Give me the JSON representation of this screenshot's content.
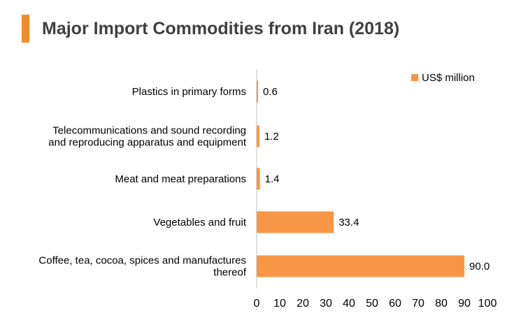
{
  "title": "Major Import Commodities from Iran (2018)",
  "colors": {
    "accent": "#f28c28",
    "bar": "#f79646",
    "axis": "#bfbfbf"
  },
  "chart_data": {
    "type": "bar",
    "orientation": "horizontal",
    "categories": [
      [
        "Plastics in primary forms"
      ],
      [
        "Telecommunications and sound recording",
        "and reproducing apparatus and equipment"
      ],
      [
        "Meat and meat preparations"
      ],
      [
        "Vegetables and fruit"
      ],
      [
        "Coffee, tea, cocoa, spices and manufactures",
        "thereof"
      ]
    ],
    "series": [
      {
        "name": "US$ million",
        "values": [
          0.6,
          1.2,
          1.4,
          33.4,
          90.0
        ],
        "labels": [
          "0.6",
          "1.2",
          "1.4",
          "33.4",
          "90.0"
        ]
      }
    ],
    "xlim": [
      0,
      100
    ],
    "xticks": [
      0,
      10,
      20,
      30,
      40,
      50,
      60,
      70,
      80,
      90,
      100
    ],
    "grid": false,
    "legend": "top-right"
  }
}
